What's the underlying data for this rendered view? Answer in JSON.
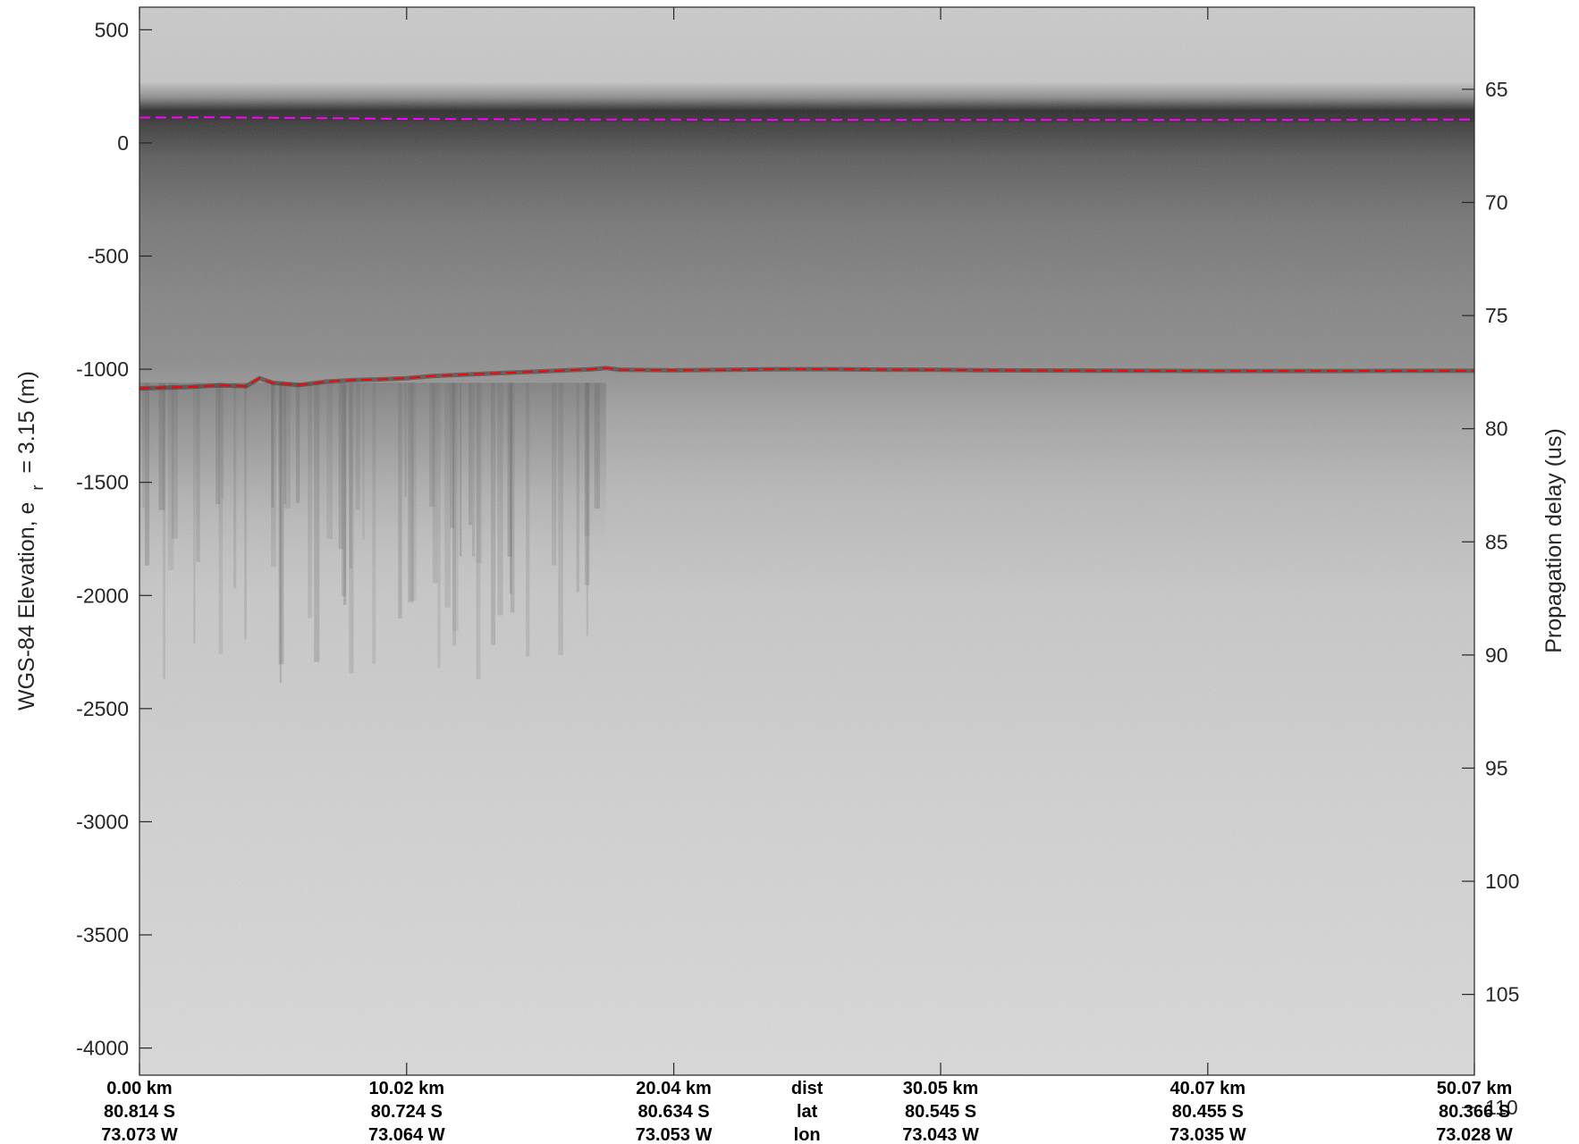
{
  "chart_data": {
    "type": "heatmap",
    "description_colormap": "gray",
    "left_axis": {
      "label": "WGS-84 Elevation, e",
      "label_subscript": "r",
      "label_suffix": "= 3.15 (m)",
      "ylim": [
        -4120,
        600
      ],
      "ticks": [
        "500",
        "0",
        "-500",
        "-1000",
        "-1500",
        "-2000",
        "-2500",
        "-3000",
        "-3500",
        "-4000"
      ],
      "tick_values": [
        500,
        0,
        -500,
        -1000,
        -1500,
        -2000,
        -2500,
        -3000,
        -3500,
        -4000
      ]
    },
    "right_axis": {
      "label": "Propagation delay (us)",
      "ticks": [
        "65",
        "70",
        "75",
        "80",
        "85",
        "90",
        "95",
        "100",
        "105",
        "110"
      ],
      "tick_values": [
        65,
        70,
        75,
        80,
        85,
        90,
        95,
        100,
        105,
        110
      ],
      "ref_value_at_zero_elev": 67.37,
      "us_per_meter": 0.01
    },
    "x_axis": {
      "xlim": [
        0,
        50.07
      ],
      "row_labels": {
        "dist": "dist",
        "lat": "lat",
        "lon": "lon"
      },
      "ticks": [
        {
          "km_value": 0.0,
          "dist": "0.00 km",
          "lat": "80.814 S",
          "lon": "73.073 W"
        },
        {
          "km_value": 10.02,
          "dist": "10.02 km",
          "lat": "80.724 S",
          "lon": "73.064 W"
        },
        {
          "km_value": 20.04,
          "dist": "20.04 km",
          "lat": "80.634 S",
          "lon": "73.053 W"
        },
        {
          "km_value": 30.05,
          "dist": "30.05 km",
          "lat": "80.545 S",
          "lon": "73.043 W"
        },
        {
          "km_value": 40.07,
          "dist": "40.07 km",
          "lat": "80.455 S",
          "lon": "73.035 W"
        },
        {
          "km_value": 50.07,
          "dist": "50.07 km",
          "lat": "80.366 S",
          "lon": "73.028 W"
        }
      ]
    },
    "series": [
      {
        "name": "surface",
        "color": "#ff00ff",
        "style": "dashed",
        "x": [
          0,
          2.5,
          5,
          7.5,
          10,
          12.5,
          15,
          17.5,
          20,
          22.5,
          25,
          27.5,
          30,
          32.5,
          35,
          37.5,
          40,
          42.5,
          45,
          47.5,
          50.07
        ],
        "y": [
          112,
          113,
          111,
          109,
          106,
          105,
          104,
          103,
          103,
          102,
          102,
          102,
          102,
          102,
          102,
          102,
          102,
          102,
          102,
          103,
          103
        ]
      },
      {
        "name": "bottom",
        "color": "#ff0000",
        "style": "dashed",
        "x": [
          0,
          1,
          2,
          3,
          4,
          4.5,
          5,
          6,
          7,
          8,
          9,
          10,
          11,
          12,
          13,
          14,
          15,
          16,
          17,
          17.5,
          18,
          20,
          22,
          24,
          26,
          28,
          30,
          32,
          35,
          38,
          40,
          42,
          45,
          48,
          50.07
        ],
        "y": [
          -1085,
          -1082,
          -1078,
          -1072,
          -1075,
          -1040,
          -1060,
          -1070,
          -1055,
          -1048,
          -1045,
          -1040,
          -1030,
          -1025,
          -1020,
          -1015,
          -1010,
          -1005,
          -1000,
          -995,
          -1002,
          -1005,
          -1003,
          -1000,
          -1000,
          -1002,
          -1003,
          -1005,
          -1006,
          -1007,
          -1008,
          -1008,
          -1008,
          -1007,
          -1007
        ]
      }
    ],
    "bands": [
      {
        "name": "surface-return",
        "from": 140,
        "to": -40,
        "shade": 50
      },
      {
        "name": "upper-ice",
        "from": -40,
        "to": -1000,
        "shade": 115
      },
      {
        "name": "basal-scatter",
        "from": -1000,
        "to": -1800,
        "shade": 160
      },
      {
        "name": "deep-noise",
        "from": -1800,
        "to": -4120,
        "shade": 205
      }
    ]
  }
}
